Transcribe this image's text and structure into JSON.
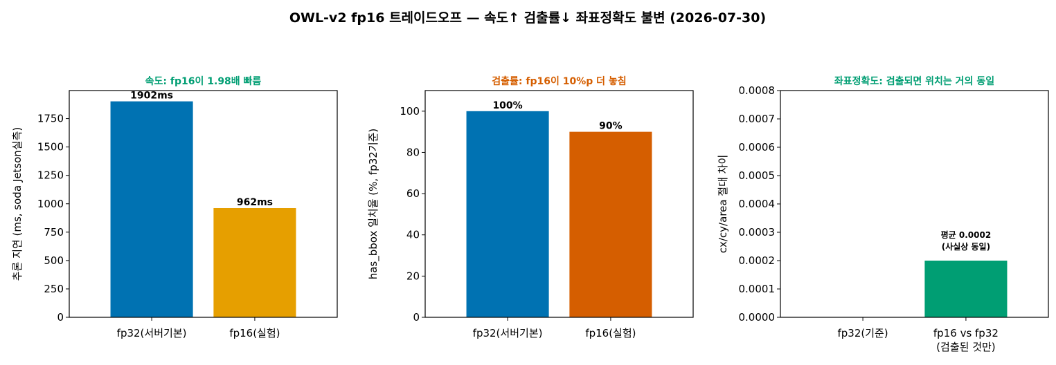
{
  "figure": {
    "suptitle": "OWL-v2 fp16 트레이드오프 — 속도↑ 검출률↓ 좌표정확도 불변 (2026-07-30)"
  },
  "chart_data": [
    {
      "type": "bar",
      "title": "속도: fp16이 1.98배 빠름",
      "title_color": "#009E73",
      "ylabel": "추론 지연 (ms, soda Jetson실측)",
      "xlabel": "",
      "categories": [
        "fp32(서버기본)",
        "fp16(실험)"
      ],
      "values": [
        1902,
        962
      ],
      "value_labels": [
        "1902ms",
        "962ms"
      ],
      "colors": [
        "#0072B2",
        "#E69F00"
      ],
      "ylim": [
        0,
        1997
      ],
      "yticks": [
        0,
        250,
        500,
        750,
        1000,
        1250,
        1500,
        1750
      ],
      "ytick_labels": [
        "0",
        "250",
        "500",
        "750",
        "1000",
        "1250",
        "1500",
        "1750"
      ],
      "grid": false
    },
    {
      "type": "bar",
      "title": "검출률: fp16이 10%p 더 놓침",
      "title_color": "#D55E00",
      "ylabel": "has_bbox 일치율 (%, fp32기준)",
      "xlabel": "",
      "categories": [
        "fp32(서버기본)",
        "fp16(실험)"
      ],
      "values": [
        100,
        90
      ],
      "value_labels": [
        "100%",
        "90%"
      ],
      "colors": [
        "#0072B2",
        "#D55E00"
      ],
      "ylim": [
        0,
        110
      ],
      "yticks": [
        0,
        20,
        40,
        60,
        80,
        100
      ],
      "ytick_labels": [
        "0",
        "20",
        "40",
        "60",
        "80",
        "100"
      ],
      "grid": false
    },
    {
      "type": "bar",
      "title": "좌표정확도: 검출되면 위치는 거의 동일",
      "title_color": "#009E73",
      "ylabel": "cx/cy/area 절대 차이",
      "xlabel": "",
      "categories": [
        "fp32(기준)",
        "fp16 vs fp32\n(검출된 것만)"
      ],
      "values": [
        0,
        0.0002
      ],
      "colors": [
        "#009E73",
        "#009E73"
      ],
      "annotation": "평균 0.0002\n(사실상 동일)",
      "ylim": [
        0,
        0.0008
      ],
      "yticks": [
        0,
        0.0001,
        0.0002,
        0.0003,
        0.0004,
        0.0005,
        0.0006,
        0.0007,
        0.0008
      ],
      "ytick_labels": [
        "0.0000",
        "0.0001",
        "0.0002",
        "0.0003",
        "0.0004",
        "0.0005",
        "0.0006",
        "0.0007",
        "0.0008"
      ],
      "grid": false
    }
  ]
}
